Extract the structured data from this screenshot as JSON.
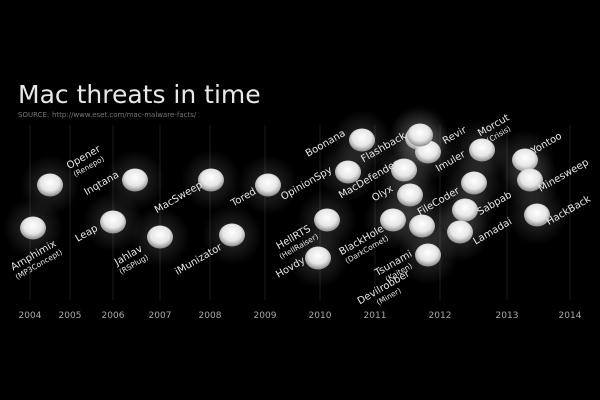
{
  "title": "Mac threats in time",
  "source_label": "SOURCE:",
  "source_url": "http://www.eset.com/mac-malware-facts/",
  "years": [
    "2004",
    "2005",
    "2006",
    "2007",
    "2008",
    "2009",
    "2010",
    "2011",
    "2012",
    "2013",
    "2014"
  ],
  "threats": [
    {
      "name": "Amphimix",
      "alias": "(MP3Concept)"
    },
    {
      "name": "Opener",
      "alias": "(Renepo)"
    },
    {
      "name": "Leap"
    },
    {
      "name": "Inqtana"
    },
    {
      "name": "Jahlav",
      "alias": "(RSPlug)"
    },
    {
      "name": "MacSweep"
    },
    {
      "name": "iMunizator"
    },
    {
      "name": "Tored"
    },
    {
      "name": "OpinionSpy"
    },
    {
      "name": "Boonana"
    },
    {
      "name": "HellRTS",
      "alias": "(HellRaiser)"
    },
    {
      "name": "Hovdy"
    },
    {
      "name": "MacDefender"
    },
    {
      "name": "Flashback"
    },
    {
      "name": "BlackHole",
      "alias": "(DarkComet)"
    },
    {
      "name": "Olyx"
    },
    {
      "name": "Tsunami",
      "alias": "(Kaiten)"
    },
    {
      "name": "Devilrobber",
      "alias": "(Miner)"
    },
    {
      "name": "FileCoder"
    },
    {
      "name": "Imuler"
    },
    {
      "name": "Revir"
    },
    {
      "name": "Morcut",
      "alias": "(Crisis)"
    },
    {
      "name": "Sabpab"
    },
    {
      "name": "Lamadai"
    },
    {
      "name": "Yontoo"
    },
    {
      "name": "Minesweep"
    },
    {
      "name": "HackBack"
    }
  ]
}
